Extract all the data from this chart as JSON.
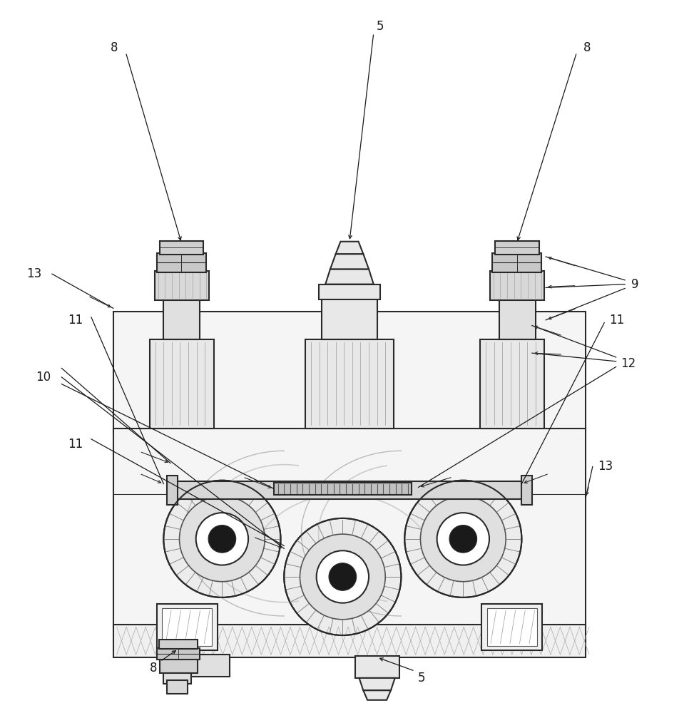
{
  "bg_color": "#ffffff",
  "line_color": "#2a2a2a",
  "shade_color": "#aaaaaa",
  "light_gray": "#d0d0d0",
  "med_gray": "#888888"
}
